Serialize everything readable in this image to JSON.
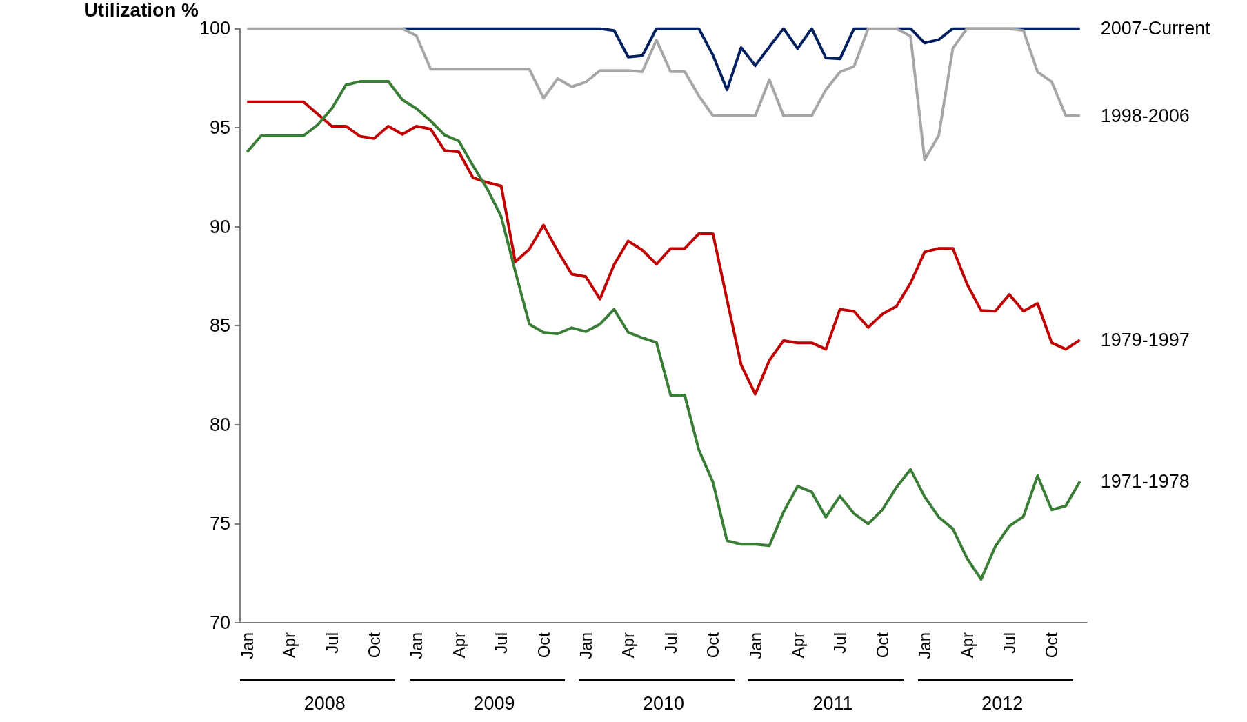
{
  "chart_data": {
    "type": "line",
    "ylabel": "Utilization %",
    "categories": [
      "Jan",
      null,
      null,
      "Apr",
      null,
      null,
      "Jul",
      null,
      null,
      "Oct",
      null,
      null,
      "Jan",
      null,
      null,
      "Apr",
      null,
      null,
      "Jul",
      null,
      null,
      "Oct",
      null,
      null,
      "Jan",
      null,
      null,
      "Apr",
      null,
      null,
      "Jul",
      null,
      null,
      "Oct",
      null,
      null,
      "Jan",
      null,
      null,
      "Apr",
      null,
      null,
      "Jul",
      null,
      null,
      "Oct",
      null,
      null,
      "Jan",
      null,
      null,
      "Apr",
      null,
      null,
      "Jul",
      null,
      null,
      "Oct",
      null,
      null
    ],
    "annotations": [
      "2008",
      "2009",
      "2010",
      "2011",
      "2012"
    ],
    "ylim": [
      70,
      100
    ],
    "yticks": [
      70,
      75,
      80,
      85,
      90,
      95,
      100
    ],
    "grid": false,
    "legend": false,
    "marker": "none",
    "line_style": "solid",
    "series": [
      {
        "name": "2007-Current",
        "color": "#002060",
        "values": [
          null,
          null,
          null,
          null,
          null,
          null,
          null,
          null,
          null,
          null,
          null,
          100,
          100,
          100,
          100,
          100,
          100,
          100,
          100,
          100,
          100,
          100,
          100,
          100,
          100,
          100,
          99.9,
          98.56,
          98.63,
          100,
          100,
          100,
          100,
          98.66,
          96.91,
          99.04,
          98.13,
          99.08,
          100,
          98.99,
          100,
          98.52,
          98.47,
          100,
          100,
          null,
          100,
          100,
          99.27,
          99.44,
          100,
          100,
          100,
          100,
          100,
          100,
          100,
          100,
          100,
          100
        ]
      },
      {
        "name": "1998-2006",
        "color": "#a6a6a6",
        "values": [
          100,
          100,
          100,
          100,
          100,
          100,
          100,
          100,
          100,
          100,
          100,
          100,
          99.63,
          97.95,
          97.95,
          97.95,
          97.95,
          97.95,
          97.95,
          97.95,
          97.95,
          96.48,
          97.47,
          97.06,
          97.3,
          97.88,
          97.88,
          97.88,
          97.82,
          99.42,
          97.83,
          97.83,
          96.6,
          95.6,
          95.6,
          95.6,
          95.6,
          97.42,
          95.6,
          95.6,
          95.6,
          96.91,
          97.81,
          98.09,
          100,
          100,
          100,
          99.61,
          93.37,
          94.61,
          99.01,
          100,
          100,
          100,
          100,
          99.9,
          97.81,
          97.31,
          95.6,
          95.6
        ]
      },
      {
        "name": "1979-1997",
        "color": "#c00000",
        "values": [
          96.3,
          96.3,
          96.3,
          96.3,
          96.3,
          95.68,
          95.07,
          95.07,
          94.56,
          94.45,
          95.07,
          94.66,
          95.07,
          94.93,
          93.84,
          93.77,
          92.47,
          92.23,
          92.05,
          88.22,
          88.86,
          90.07,
          88.77,
          87.6,
          87.47,
          86.34,
          88.08,
          89.27,
          88.81,
          88.1,
          88.89,
          88.89,
          89.64,
          89.64,
          86.3,
          83.02,
          81.54,
          83.25,
          84.24,
          84.13,
          84.13,
          83.81,
          85.83,
          85.72,
          84.91,
          85.58,
          85.97,
          87.15,
          88.72,
          88.9,
          88.9,
          87.1,
          85.76,
          85.73,
          86.57,
          85.73,
          86.12,
          84.13,
          83.81,
          84.27
        ]
      },
      {
        "name": "1971-1978",
        "color": "#3a7d36",
        "values": [
          93.77,
          94.59,
          94.59,
          94.59,
          94.59,
          95.14,
          95.96,
          97.15,
          97.33,
          97.33,
          97.33,
          96.4,
          95.96,
          95.34,
          94.62,
          94.32,
          93.08,
          91.92,
          90.51,
          87.74,
          85.07,
          84.66,
          84.59,
          84.89,
          84.7,
          85.07,
          85.82,
          84.66,
          84.38,
          84.15,
          81.49,
          81.49,
          78.73,
          77.1,
          74.14,
          73.96,
          73.96,
          73.89,
          75.59,
          76.89,
          76.6,
          75.33,
          76.39,
          75.51,
          74.99,
          75.7,
          76.83,
          77.74,
          76.36,
          75.33,
          74.74,
          73.25,
          72.19,
          73.84,
          74.88,
          75.37,
          77.42,
          75.7,
          75.9,
          77.14
        ]
      }
    ]
  }
}
